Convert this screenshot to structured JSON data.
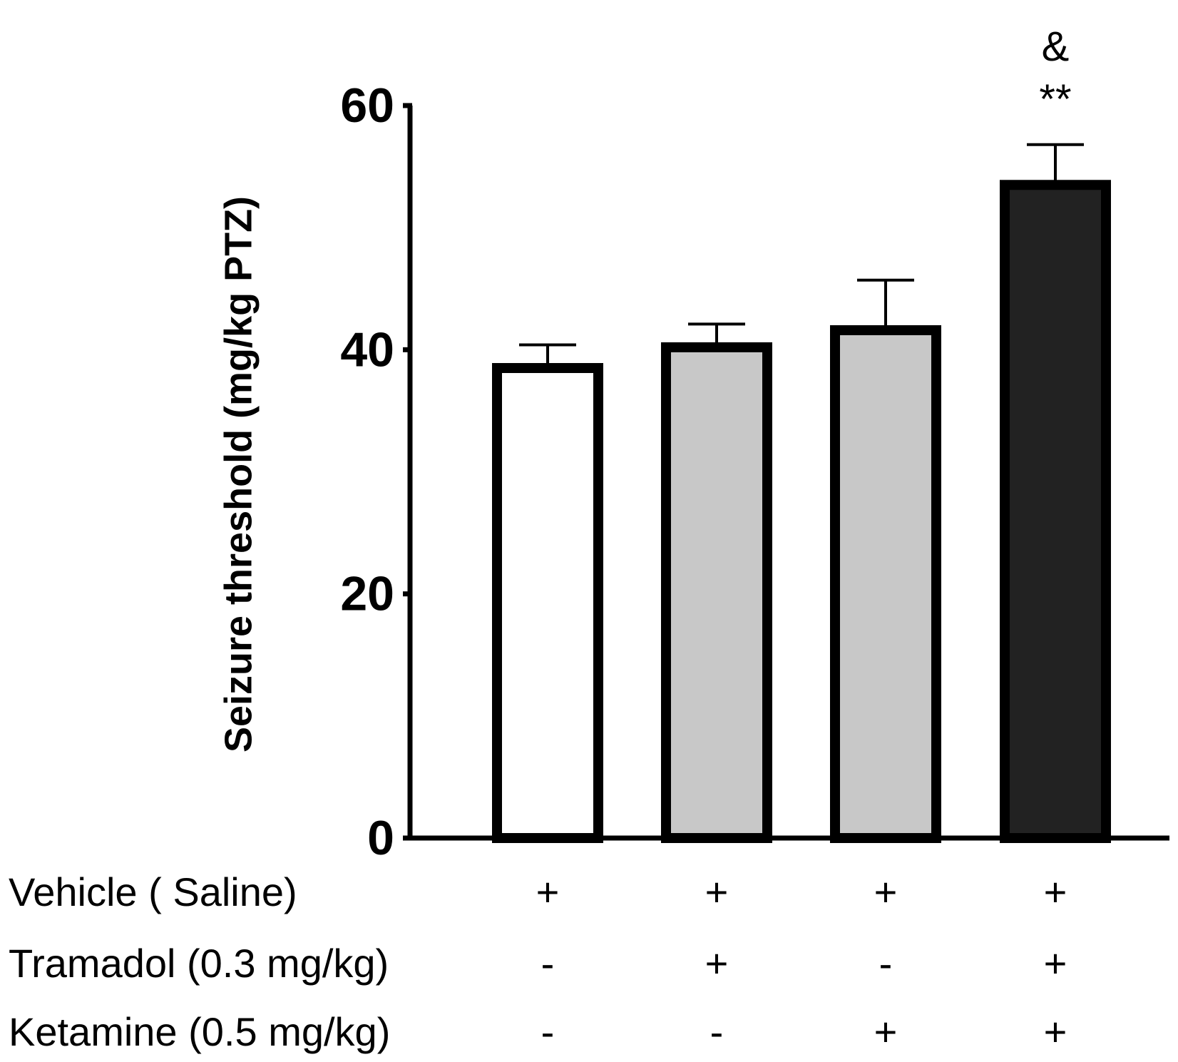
{
  "chart_data": {
    "type": "bar",
    "title": "",
    "xlabel": "",
    "ylabel": "Seizure threshold (mg/kg PTZ)",
    "ylim": [
      0,
      60
    ],
    "yticks": [
      "0",
      "20",
      "40",
      "60"
    ],
    "categories": [
      "Vehicle",
      "Tramadol",
      "Ketamine",
      "Tramadol + Ketamine"
    ],
    "values": [
      38.5,
      40.2,
      41.6,
      53.5
    ],
    "errors": [
      1.9,
      1.9,
      4.1,
      3.3
    ],
    "fills": [
      "#ffffff",
      "#c8c8c8",
      "#c8c8c8",
      "#222222"
    ],
    "annotations": [
      {
        "bar": 3,
        "lines": [
          "&",
          "**"
        ]
      }
    ],
    "treatment_table": {
      "rows": [
        {
          "label": "Vehicle ( Saline)",
          "signs": [
            "+",
            "+",
            "+",
            "+"
          ]
        },
        {
          "label": "Tramadol (0.3 mg/kg)",
          "signs": [
            "-",
            "+",
            "-",
            "+"
          ]
        },
        {
          "label": "Ketamine (0.5 mg/kg)",
          "signs": [
            "-",
            "-",
            "+",
            "+"
          ]
        }
      ]
    }
  }
}
